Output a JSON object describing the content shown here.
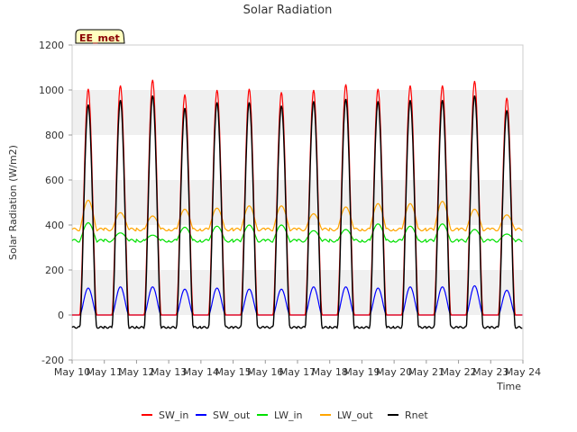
{
  "chart_data": {
    "type": "line",
    "title": "Solar Radiation",
    "xlabel": "Time",
    "ylabel": "Solar Radiation (W/m2)",
    "ylim": [
      -200,
      1200
    ],
    "yticks": [
      -200,
      0,
      200,
      400,
      600,
      800,
      1000,
      1200
    ],
    "xlim": [
      "2024-05-10",
      "2024-05-24"
    ],
    "xtick_labels": [
      "May 10",
      "May 11",
      "May 12",
      "May 13",
      "May 14",
      "May 15",
      "May 16",
      "May 17",
      "May 18",
      "May 19",
      "May 20",
      "May 21",
      "May 22",
      "May 23",
      "May 24"
    ],
    "grid": "horizontal alternating bands",
    "legend_placement": "bottom",
    "site_label": "EE_met",
    "x_dates": [
      "2024-05-10",
      "2024-05-11",
      "2024-05-12",
      "2024-05-13",
      "2024-05-14",
      "2024-05-15",
      "2024-05-16",
      "2024-05-17",
      "2024-05-18",
      "2024-05-19",
      "2024-05-20",
      "2024-05-21",
      "2024-05-22",
      "2024-05-23",
      "2024-05-24"
    ],
    "daily_peaks": {
      "SW_in": [
        1005,
        1020,
        1045,
        980,
        1000,
        1005,
        990,
        1000,
        1025,
        1005,
        1020,
        1020,
        1040,
        965
      ],
      "SW_out": [
        120,
        125,
        125,
        115,
        120,
        115,
        115,
        125,
        125,
        120,
        125,
        125,
        130,
        110
      ],
      "LW_in": [
        410,
        365,
        355,
        390,
        395,
        400,
        400,
        375,
        380,
        405,
        395,
        405,
        380,
        360
      ],
      "LW_out": [
        510,
        455,
        440,
        470,
        475,
        485,
        485,
        450,
        480,
        495,
        495,
        505,
        470,
        445
      ],
      "Rnet": [
        935,
        955,
        975,
        920,
        945,
        945,
        930,
        950,
        960,
        950,
        955,
        955,
        975,
        910
      ]
    },
    "nightly_values": {
      "SW_in": 0,
      "SW_out": 0,
      "LW_in": 330,
      "LW_out": 380,
      "Rnet": -55
    },
    "series": [
      {
        "name": "SW_in",
        "color": "#ff0000"
      },
      {
        "name": "SW_out",
        "color": "#0000ff"
      },
      {
        "name": "LW_in",
        "color": "#00e000"
      },
      {
        "name": "LW_out",
        "color": "#ffa500"
      },
      {
        "name": "Rnet",
        "color": "#000000"
      }
    ]
  }
}
